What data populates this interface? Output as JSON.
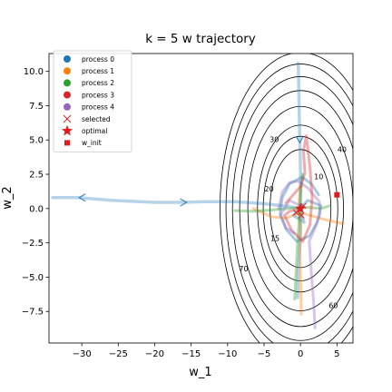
{
  "chart_data": {
    "type": "line",
    "title": "k = 5 w trajectory",
    "xlabel": "w_1",
    "ylabel": "w_2",
    "xlim": [
      -34.5,
      7.2
    ],
    "ylim": [
      -9.8,
      11.3
    ],
    "xticks": [
      -30,
      -25,
      -20,
      -15,
      -10,
      -5,
      0,
      5
    ],
    "xtick_labels": [
      "−30",
      "−25",
      "−20",
      "−15",
      "−10",
      "−5",
      "0",
      "5"
    ],
    "yticks": [
      -7.5,
      -5.0,
      -2.5,
      0.0,
      2.5,
      5.0,
      7.5,
      10.0
    ],
    "ytick_labels": [
      "−7.5",
      "−5.0",
      "−2.5",
      "0.0",
      "2.5",
      "5.0",
      "7.5",
      "10.0"
    ],
    "grid": false,
    "legend_position": "top-left",
    "legend": [
      {
        "label": "process 0",
        "marker": "circle",
        "color": "#1f77b4"
      },
      {
        "label": "process 1",
        "marker": "circle",
        "color": "#ff7f0e"
      },
      {
        "label": "process 2",
        "marker": "circle",
        "color": "#2ca02c"
      },
      {
        "label": "process 3",
        "marker": "circle",
        "color": "#d62728"
      },
      {
        "label": "process 4",
        "marker": "circle",
        "color": "#9467bd"
      },
      {
        "label": "selected",
        "marker": "x",
        "color": "#d62728"
      },
      {
        "label": "optimal",
        "marker": "star",
        "color": "#e31a1c"
      },
      {
        "label": "w_init",
        "marker": "square",
        "color": "#e31a1c"
      }
    ],
    "contours": {
      "center": [
        0,
        0
      ],
      "levels": [
        10,
        15,
        20,
        30,
        40,
        50,
        60,
        70
      ],
      "labels": [
        {
          "text": "10",
          "x": 2.5,
          "y": 2.3
        },
        {
          "text": "15",
          "x": -3.5,
          "y": -2.2
        },
        {
          "text": "20",
          "x": -4.3,
          "y": 1.4
        },
        {
          "text": "30",
          "x": -3.6,
          "y": 5.0
        },
        {
          "text": "40",
          "x": 5.7,
          "y": 4.3
        },
        {
          "text": "60",
          "x": 4.5,
          "y": -7.1
        },
        {
          "text": "70",
          "x": -7.8,
          "y": -4.4
        }
      ]
    },
    "series": [
      {
        "name": "trajectory",
        "color": "#1f77b4",
        "points": [
          [
            -34.0,
            0.8
          ],
          [
            -30.5,
            0.8
          ],
          [
            -26.0,
            0.6
          ],
          [
            -20.0,
            0.45
          ],
          [
            -16.0,
            0.45
          ],
          [
            -13.0,
            0.5
          ],
          [
            -9.0,
            0.5
          ],
          [
            -5.0,
            0.35
          ],
          [
            -1.5,
            0.15
          ],
          [
            0,
            0
          ]
        ],
        "arrows": [
          [
            -30.0,
            0.8
          ],
          [
            -16.0,
            0.45
          ]
        ]
      },
      {
        "name": "trajectory",
        "color": "#1f77b4",
        "points": [
          [
            -0.3,
            10.6
          ],
          [
            -0.2,
            7.5
          ],
          [
            -0.1,
            5.0
          ],
          [
            0,
            2.5
          ],
          [
            0,
            0.5
          ],
          [
            0,
            -2.0
          ],
          [
            -0.3,
            -4.5
          ],
          [
            -0.4,
            -6.5
          ]
        ],
        "arrows": [
          [
            -0.1,
            5.0
          ]
        ]
      },
      {
        "name": "process 0",
        "color": "#1f77b4",
        "points": [
          [
            2.5,
            1.0
          ],
          [
            1.5,
            1.8
          ],
          [
            0.2,
            2.3
          ],
          [
            -1.5,
            1.8
          ],
          [
            -2.5,
            0.8
          ],
          [
            -2.8,
            -0.3
          ],
          [
            -2.0,
            -1.5
          ],
          [
            -0.5,
            -2.4
          ],
          [
            1.2,
            -2.0
          ],
          [
            2.3,
            -1.0
          ],
          [
            2.8,
            0.2
          ],
          [
            1.0,
            0.6
          ],
          [
            -1.0,
            -0.5
          ],
          [
            0.5,
            -1.0
          ],
          [
            0.0,
            0.0
          ]
        ]
      },
      {
        "name": "process 1",
        "color": "#ff7f0e",
        "points": [
          [
            0.0,
            1.6
          ],
          [
            -0.2,
            0.5
          ],
          [
            0.0,
            -1.2
          ],
          [
            -0.1,
            -3.0
          ],
          [
            0.0,
            -5.0
          ],
          [
            0.1,
            -7.7
          ]
        ]
      },
      {
        "name": "process 1",
        "color": "#ff7f0e",
        "points": [
          [
            -6.5,
            0.0
          ],
          [
            -4.0,
            -0.6
          ],
          [
            -2.0,
            -0.7
          ],
          [
            0.0,
            -0.3
          ],
          [
            2.0,
            -0.6
          ],
          [
            4.0,
            -0.9
          ],
          [
            5.8,
            -1.1
          ]
        ]
      },
      {
        "name": "process 2",
        "color": "#2ca02c",
        "points": [
          [
            -9.0,
            -0.15
          ],
          [
            -6.5,
            -0.2
          ],
          [
            -4.0,
            -0.1
          ],
          [
            -1.5,
            0.0
          ],
          [
            0.5,
            0.1
          ],
          [
            2.8,
            0.0
          ],
          [
            4.0,
            0.2
          ]
        ]
      },
      {
        "name": "process 2",
        "color": "#2ca02c",
        "points": [
          [
            -0.8,
            -6.6
          ],
          [
            -0.6,
            -4.5
          ],
          [
            -0.4,
            -2.6
          ],
          [
            -0.2,
            -0.8
          ],
          [
            0.0,
            1.0
          ],
          [
            0.3,
            2.5
          ]
        ]
      },
      {
        "name": "process 3",
        "color": "#d62728",
        "points": [
          [
            -2.0,
            0.4
          ],
          [
            -1.0,
            1.0
          ],
          [
            0.0,
            1.6
          ],
          [
            0.6,
            2.6
          ],
          [
            0.4,
            4.2
          ],
          [
            0.8,
            5.3
          ],
          [
            1.3,
            3.0
          ],
          [
            1.6,
            0.8
          ],
          [
            1.3,
            -1.2
          ],
          [
            0.3,
            -2.4
          ],
          [
            -1.2,
            -1.6
          ],
          [
            -2.2,
            -0.5
          ],
          [
            -1.5,
            -0.2
          ],
          [
            0.0,
            0.0
          ]
        ]
      },
      {
        "name": "process 4",
        "color": "#9467bd",
        "points": [
          [
            -3.0,
            0.0
          ],
          [
            -2.5,
            1.2
          ],
          [
            -1.5,
            1.9
          ],
          [
            -0.3,
            2.0
          ],
          [
            1.0,
            1.5
          ],
          [
            2.6,
            0.5
          ],
          [
            2.7,
            -0.4
          ],
          [
            2.0,
            -1.4
          ],
          [
            1.2,
            -2.4
          ],
          [
            1.5,
            -4.8
          ],
          [
            1.8,
            -6.8
          ],
          [
            2.0,
            -8.7
          ]
        ]
      },
      {
        "name": "process 4",
        "color": "#9467bd",
        "points": [
          [
            -0.8,
            -1.8
          ],
          [
            -2.0,
            -1.4
          ],
          [
            -2.8,
            -0.5
          ],
          [
            -1.5,
            0.6
          ],
          [
            0.0,
            0.2
          ]
        ]
      }
    ],
    "selected_points": [
      [
        -0.6,
        -0.3
      ],
      [
        0.4,
        0.2
      ],
      [
        0.1,
        -0.5
      ]
    ],
    "optimal": [
      0,
      0
    ],
    "w_init": [
      5.0,
      1.0
    ]
  }
}
